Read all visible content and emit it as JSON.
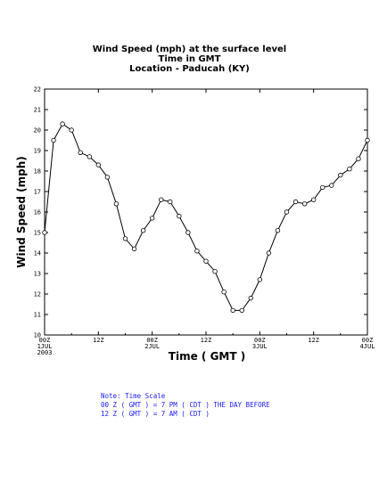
{
  "title": {
    "line1": "Wind Speed (mph) at the surface level",
    "line2": "Time in GMT",
    "line3": "Location - Paducah (KY)"
  },
  "chart_data": {
    "type": "line",
    "xlabel": "Time ( GMT )",
    "ylabel": "Wind Speed (mph)",
    "ylim": [
      10,
      22
    ],
    "yticks": [
      10,
      11,
      12,
      13,
      14,
      15,
      16,
      17,
      18,
      19,
      20,
      21,
      22
    ],
    "xlim_hours": [
      0,
      72
    ],
    "xticks": [
      {
        "hour": 0,
        "label": "00Z",
        "sub1": "1JUL",
        "sub2": "2003"
      },
      {
        "hour": 12,
        "label": "12Z",
        "sub1": "",
        "sub2": ""
      },
      {
        "hour": 24,
        "label": "00Z",
        "sub1": "2JUL",
        "sub2": ""
      },
      {
        "hour": 36,
        "label": "12Z",
        "sub1": "",
        "sub2": ""
      },
      {
        "hour": 48,
        "label": "00Z",
        "sub1": "3JUL",
        "sub2": ""
      },
      {
        "hour": 60,
        "label": "12Z",
        "sub1": "",
        "sub2": ""
      },
      {
        "hour": 72,
        "label": "00Z",
        "sub1": "4JUL",
        "sub2": ""
      }
    ],
    "x_hours": [
      0,
      2,
      4,
      6,
      8,
      10,
      12,
      14,
      16,
      18,
      20,
      22,
      24,
      26,
      28,
      30,
      32,
      34,
      36,
      38,
      40,
      42,
      44,
      46,
      48,
      50,
      52,
      54,
      56,
      58,
      60,
      62,
      64,
      66,
      68,
      70,
      72
    ],
    "values": [
      15.0,
      19.5,
      20.3,
      20.0,
      18.9,
      18.7,
      18.3,
      17.7,
      16.4,
      14.7,
      14.2,
      15.1,
      15.7,
      16.6,
      16.5,
      15.8,
      15.0,
      14.1,
      13.6,
      13.1,
      12.1,
      11.2,
      11.2,
      11.8,
      12.7,
      14.0,
      15.1,
      16.0,
      16.5,
      16.4,
      16.6,
      17.2,
      17.3,
      17.8,
      18.1,
      18.6,
      19.5
    ],
    "grid": false
  },
  "note": {
    "line1": "Note: Time Scale",
    "line2": "00 Z ( GMT ) = 7 PM ( CDT ) THE DAY BEFORE",
    "line3": "12 Z ( GMT ) = 7 AM ( CDT )"
  }
}
